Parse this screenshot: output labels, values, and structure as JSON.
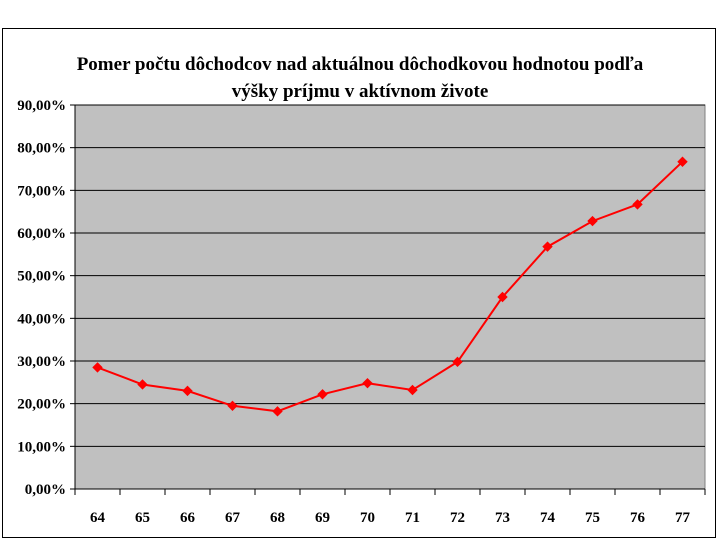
{
  "chart_data": {
    "type": "line",
    "title_lines": [
      "Pomer počtu dôchodcov nad aktuálnou dôchodkovou hodnotou podľa",
      "výšky príjmu v aktívnom živote"
    ],
    "xlabel": "",
    "ylabel": "",
    "categories": [
      "64",
      "65",
      "66",
      "67",
      "68",
      "69",
      "70",
      "71",
      "72",
      "73",
      "74",
      "75",
      "76",
      "77"
    ],
    "y_tick_labels": [
      "0,00%",
      "10,00%",
      "20,00%",
      "30,00%",
      "40,00%",
      "50,00%",
      "60,00%",
      "70,00%",
      "80,00%",
      "90,00%"
    ],
    "ylim": [
      0,
      90
    ],
    "grid": true,
    "legend": "none",
    "series": [
      {
        "values": [
          28.5,
          24.5,
          23.0,
          19.5,
          18.2,
          22.2,
          24.8,
          23.2,
          29.8,
          45.0,
          56.8,
          62.8,
          66.7,
          76.7
        ],
        "color": "#ff0000",
        "marker": "diamond"
      }
    ],
    "plot_background": "#c0c0c0",
    "gridline_color": "#000000"
  }
}
